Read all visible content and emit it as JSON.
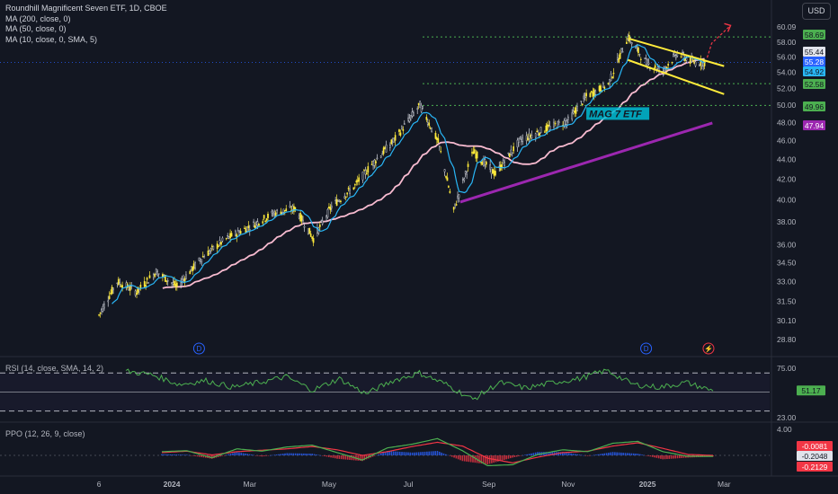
{
  "legend": {
    "symbol": "Roundhill Magnificent Seven ETF, 1D, CBOE",
    "ma200": "MA (200, close, 0)",
    "ma50": "MA (50, close, 0)",
    "ma10": "MA (10, close, 0, SMA, 5)"
  },
  "currency": "USD",
  "rsi_legend": "RSI (14, close, SMA, 14, 2)",
  "ppo_legend": "PPO (12, 26, 9, close)",
  "annotation_text": "MAG 7 ETF",
  "colors": {
    "background": "#131722",
    "up": "#ffeb3b",
    "down": "#2a2e39",
    "ma_fast": "#29b6f6",
    "ma_slow": "#f8bbd0",
    "trendline": "#9c27b0",
    "channel": "#ffeb3b",
    "level": "#4caf50",
    "rsi": "#4caf50",
    "ppo_fast": "#4caf50",
    "ppo_slow": "#f23645",
    "arrow": "#f23645"
  },
  "chart_data": [
    {
      "type": "candlestick",
      "title": "Roundhill Magnificent Seven ETF, 1D, CBOE",
      "x_ticks": [
        "6",
        "2024",
        "Mar",
        "May",
        "Jul",
        "Sep",
        "Nov",
        "2025",
        "Mar"
      ],
      "y_ticks": [
        "60.09",
        "58.00",
        "56.00",
        "54.00",
        "52.00",
        "50.00",
        "48.00",
        "46.00",
        "44.00",
        "42.00",
        "40.00",
        "38.00",
        "36.00",
        "34.50",
        "33.00",
        "31.50",
        "30.10",
        "28.80"
      ],
      "ylim": [
        28.8,
        60.09
      ],
      "y_scale": "log",
      "price_path": [
        {
          "date": "2023-11-06",
          "close": 30.5
        },
        {
          "date": "2023-11-20",
          "close": 33.0
        },
        {
          "date": "2023-12-05",
          "close": 32.2
        },
        {
          "date": "2023-12-20",
          "close": 33.8
        },
        {
          "date": "2024-01-05",
          "close": 32.6
        },
        {
          "date": "2024-01-25",
          "close": 35.0
        },
        {
          "date": "2024-02-12",
          "close": 36.5
        },
        {
          "date": "2024-03-05",
          "close": 37.8
        },
        {
          "date": "2024-03-20",
          "close": 38.8
        },
        {
          "date": "2024-04-05",
          "close": 39.2
        },
        {
          "date": "2024-04-19",
          "close": 36.5
        },
        {
          "date": "2024-05-03",
          "close": 39.4
        },
        {
          "date": "2024-05-20",
          "close": 41.2
        },
        {
          "date": "2024-06-05",
          "close": 43.8
        },
        {
          "date": "2024-06-20",
          "close": 46.0
        },
        {
          "date": "2024-07-10",
          "close": 50.0
        },
        {
          "date": "2024-07-24",
          "close": 45.8
        },
        {
          "date": "2024-08-05",
          "close": 39.0
        },
        {
          "date": "2024-08-20",
          "close": 44.8
        },
        {
          "date": "2024-09-06",
          "close": 42.5
        },
        {
          "date": "2024-09-25",
          "close": 46.0
        },
        {
          "date": "2024-10-15",
          "close": 47.3
        },
        {
          "date": "2024-11-01",
          "close": 48.2
        },
        {
          "date": "2024-11-15",
          "close": 51.0
        },
        {
          "date": "2024-12-02",
          "close": 52.5
        },
        {
          "date": "2024-12-17",
          "close": 58.7
        },
        {
          "date": "2024-12-31",
          "close": 55.2
        },
        {
          "date": "2025-01-13",
          "close": 54.2
        },
        {
          "date": "2025-01-24",
          "close": 56.5
        },
        {
          "date": "2025-02-05",
          "close": 55.3
        },
        {
          "date": "2025-02-14",
          "close": 55.28
        }
      ],
      "horizontal_levels": [
        58.69,
        52.58,
        49.96
      ],
      "price_labels": [
        {
          "text": "58.69",
          "kind": "level"
        },
        {
          "text": "55.44",
          "kind": "high"
        },
        {
          "text": "55.28",
          "kind": "last"
        },
        {
          "text": "54.92",
          "kind": "ma_fast"
        },
        {
          "text": "52.58",
          "kind": "level"
        },
        {
          "text": "49.96",
          "kind": "level"
        },
        {
          "text": "47.94",
          "kind": "trendline"
        }
      ],
      "trendline": {
        "from": {
          "date": "2024-08-10",
          "value": 39.8
        },
        "to": {
          "date": "2025-02-20",
          "value": 47.94
        }
      },
      "channel": {
        "upper": {
          "from": {
            "date": "2024-12-17",
            "value": 58.5
          },
          "to": {
            "date": "2025-03-01",
            "value": 54.8
          }
        },
        "lower": {
          "from": {
            "date": "2024-12-17",
            "value": 55.6
          },
          "to": {
            "date": "2025-03-01",
            "value": 51.3
          }
        }
      },
      "markers": [
        "D",
        "D",
        "⚡"
      ]
    },
    {
      "type": "line",
      "title": "RSI (14, close, SMA, 14, 2)",
      "y_ticks": [
        "75.00",
        "23.00"
      ],
      "ylim": [
        23,
        75
      ],
      "levels": [
        70,
        50,
        30
      ],
      "last_value_label": "51.17",
      "series": [
        {
          "values": [
            72,
            68,
            58,
            62,
            55,
            60,
            66,
            52,
            64,
            48,
            62,
            70,
            58,
            42,
            60,
            54,
            60,
            64,
            73,
            58,
            55,
            60,
            51.17
          ]
        }
      ]
    },
    {
      "type": "bar",
      "title": "PPO (12, 26, 9, close)",
      "y_ticks": [
        "4.00"
      ],
      "value_labels": [
        "-0.0081",
        "-0.2048",
        "-0.2129"
      ],
      "series": [
        {
          "values": [
            0.8,
            1.0,
            -0.5,
            1.4,
            0.9,
            1.8,
            2.2,
            0.6,
            -1.0,
            1.6,
            2.4,
            3.6,
            1.0,
            -2.2,
            -2.0,
            0.2,
            1.2,
            0.8,
            2.6,
            3.0,
            0.8,
            -0.2,
            -0.2048
          ]
        },
        {
          "values": [
            0.6,
            0.9,
            0.1,
            0.8,
            1.1,
            1.4,
            1.9,
            1.2,
            0.0,
            0.8,
            1.9,
            2.8,
            2.0,
            -0.6,
            -1.6,
            -0.4,
            0.6,
            0.9,
            2.0,
            2.7,
            1.5,
            0.2,
            -0.0081
          ]
        }
      ]
    }
  ]
}
